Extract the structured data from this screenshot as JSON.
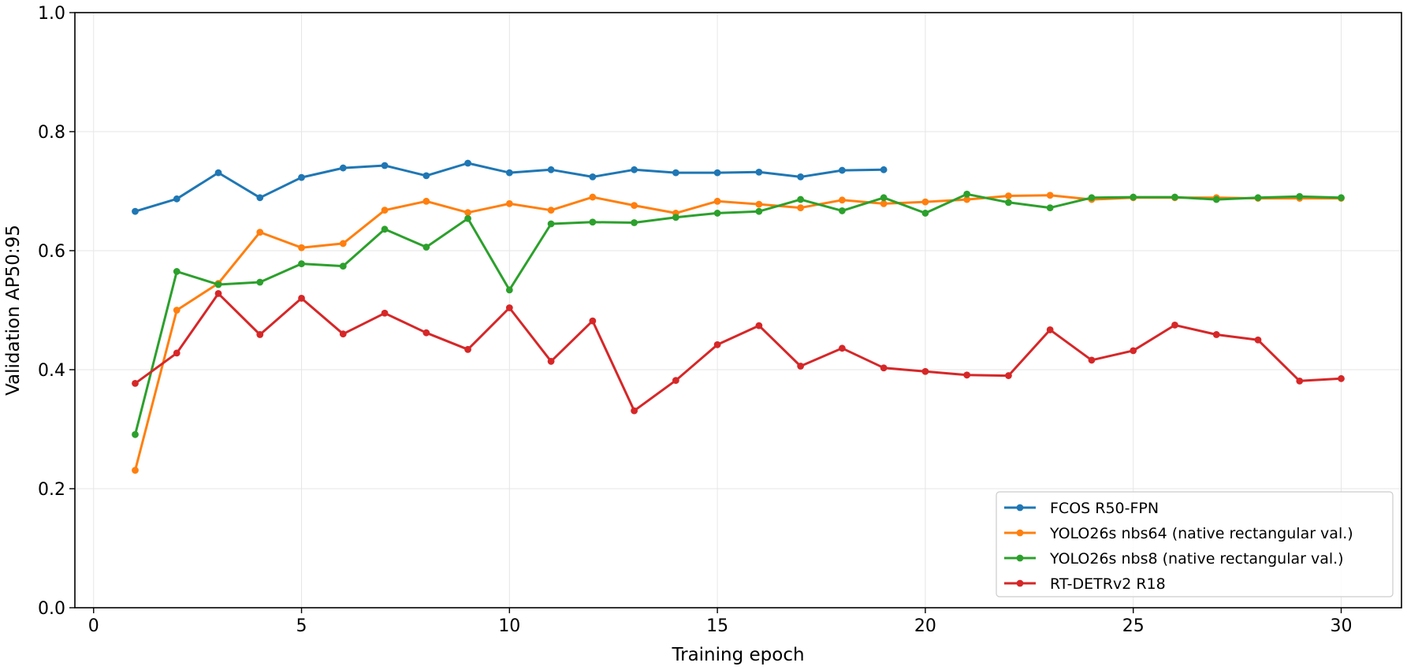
{
  "chart_data": {
    "type": "line",
    "title": "",
    "xlabel": "Training epoch",
    "ylabel": "Validation AP50:95",
    "xlim": [
      -0.45,
      31.45
    ],
    "ylim": [
      0.0,
      1.0
    ],
    "xticks": [
      0,
      5,
      10,
      15,
      20,
      25,
      30
    ],
    "yticks": [
      0.0,
      0.2,
      0.4,
      0.6,
      0.8,
      1.0
    ],
    "grid": true,
    "legend_position": "bottom-right",
    "series": [
      {
        "name": "FCOS R50-FPN",
        "color": "#1f77b4",
        "x": [
          1,
          2,
          3,
          4,
          5,
          6,
          7,
          8,
          9,
          10,
          11,
          12,
          13,
          14,
          15,
          16,
          17,
          18,
          19
        ],
        "y": [
          0.666,
          0.687,
          0.731,
          0.689,
          0.723,
          0.739,
          0.743,
          0.726,
          0.747,
          0.731,
          0.736,
          0.724,
          0.736,
          0.731,
          0.731,
          0.732,
          0.724,
          0.735,
          0.736
        ]
      },
      {
        "name": "YOLO26s nbs64 (native rectangular val.)",
        "color": "#ff7f0e",
        "x": [
          1,
          2,
          3,
          4,
          5,
          6,
          7,
          8,
          9,
          10,
          11,
          12,
          13,
          14,
          15,
          16,
          17,
          18,
          19,
          20,
          21,
          22,
          23,
          24,
          25,
          26,
          27,
          28,
          29,
          30
        ],
        "y": [
          0.231,
          0.5,
          0.545,
          0.631,
          0.605,
          0.612,
          0.668,
          0.683,
          0.664,
          0.679,
          0.668,
          0.69,
          0.676,
          0.663,
          0.683,
          0.678,
          0.672,
          0.685,
          0.679,
          0.682,
          0.686,
          0.692,
          0.693,
          0.686,
          0.689,
          0.689,
          0.689,
          0.688,
          0.688,
          0.688
        ]
      },
      {
        "name": "YOLO26s nbs8 (native rectangular val.)",
        "color": "#2ca02c",
        "x": [
          1,
          2,
          3,
          4,
          5,
          6,
          7,
          8,
          9,
          10,
          11,
          12,
          13,
          14,
          15,
          16,
          17,
          18,
          19,
          20,
          21,
          22,
          23,
          24,
          25,
          26,
          27,
          28,
          29,
          30
        ],
        "y": [
          0.291,
          0.565,
          0.543,
          0.547,
          0.578,
          0.574,
          0.636,
          0.606,
          0.654,
          0.534,
          0.645,
          0.648,
          0.647,
          0.656,
          0.663,
          0.666,
          0.686,
          0.667,
          0.689,
          0.663,
          0.695,
          0.681,
          0.672,
          0.689,
          0.69,
          0.69,
          0.686,
          0.689,
          0.691,
          0.689
        ]
      },
      {
        "name": "RT-DETRv2 R18",
        "color": "#d62728",
        "x": [
          1,
          2,
          3,
          4,
          5,
          6,
          7,
          8,
          9,
          10,
          11,
          12,
          13,
          14,
          15,
          16,
          17,
          18,
          19,
          20,
          21,
          22,
          23,
          24,
          25,
          26,
          27,
          28,
          29,
          30
        ],
        "y": [
          0.377,
          0.428,
          0.528,
          0.459,
          0.52,
          0.46,
          0.495,
          0.462,
          0.434,
          0.504,
          0.414,
          0.482,
          0.331,
          0.382,
          0.442,
          0.474,
          0.406,
          0.436,
          0.403,
          0.397,
          0.391,
          0.39,
          0.467,
          0.416,
          0.432,
          0.475,
          0.459,
          0.45,
          0.381,
          0.385
        ]
      }
    ]
  }
}
